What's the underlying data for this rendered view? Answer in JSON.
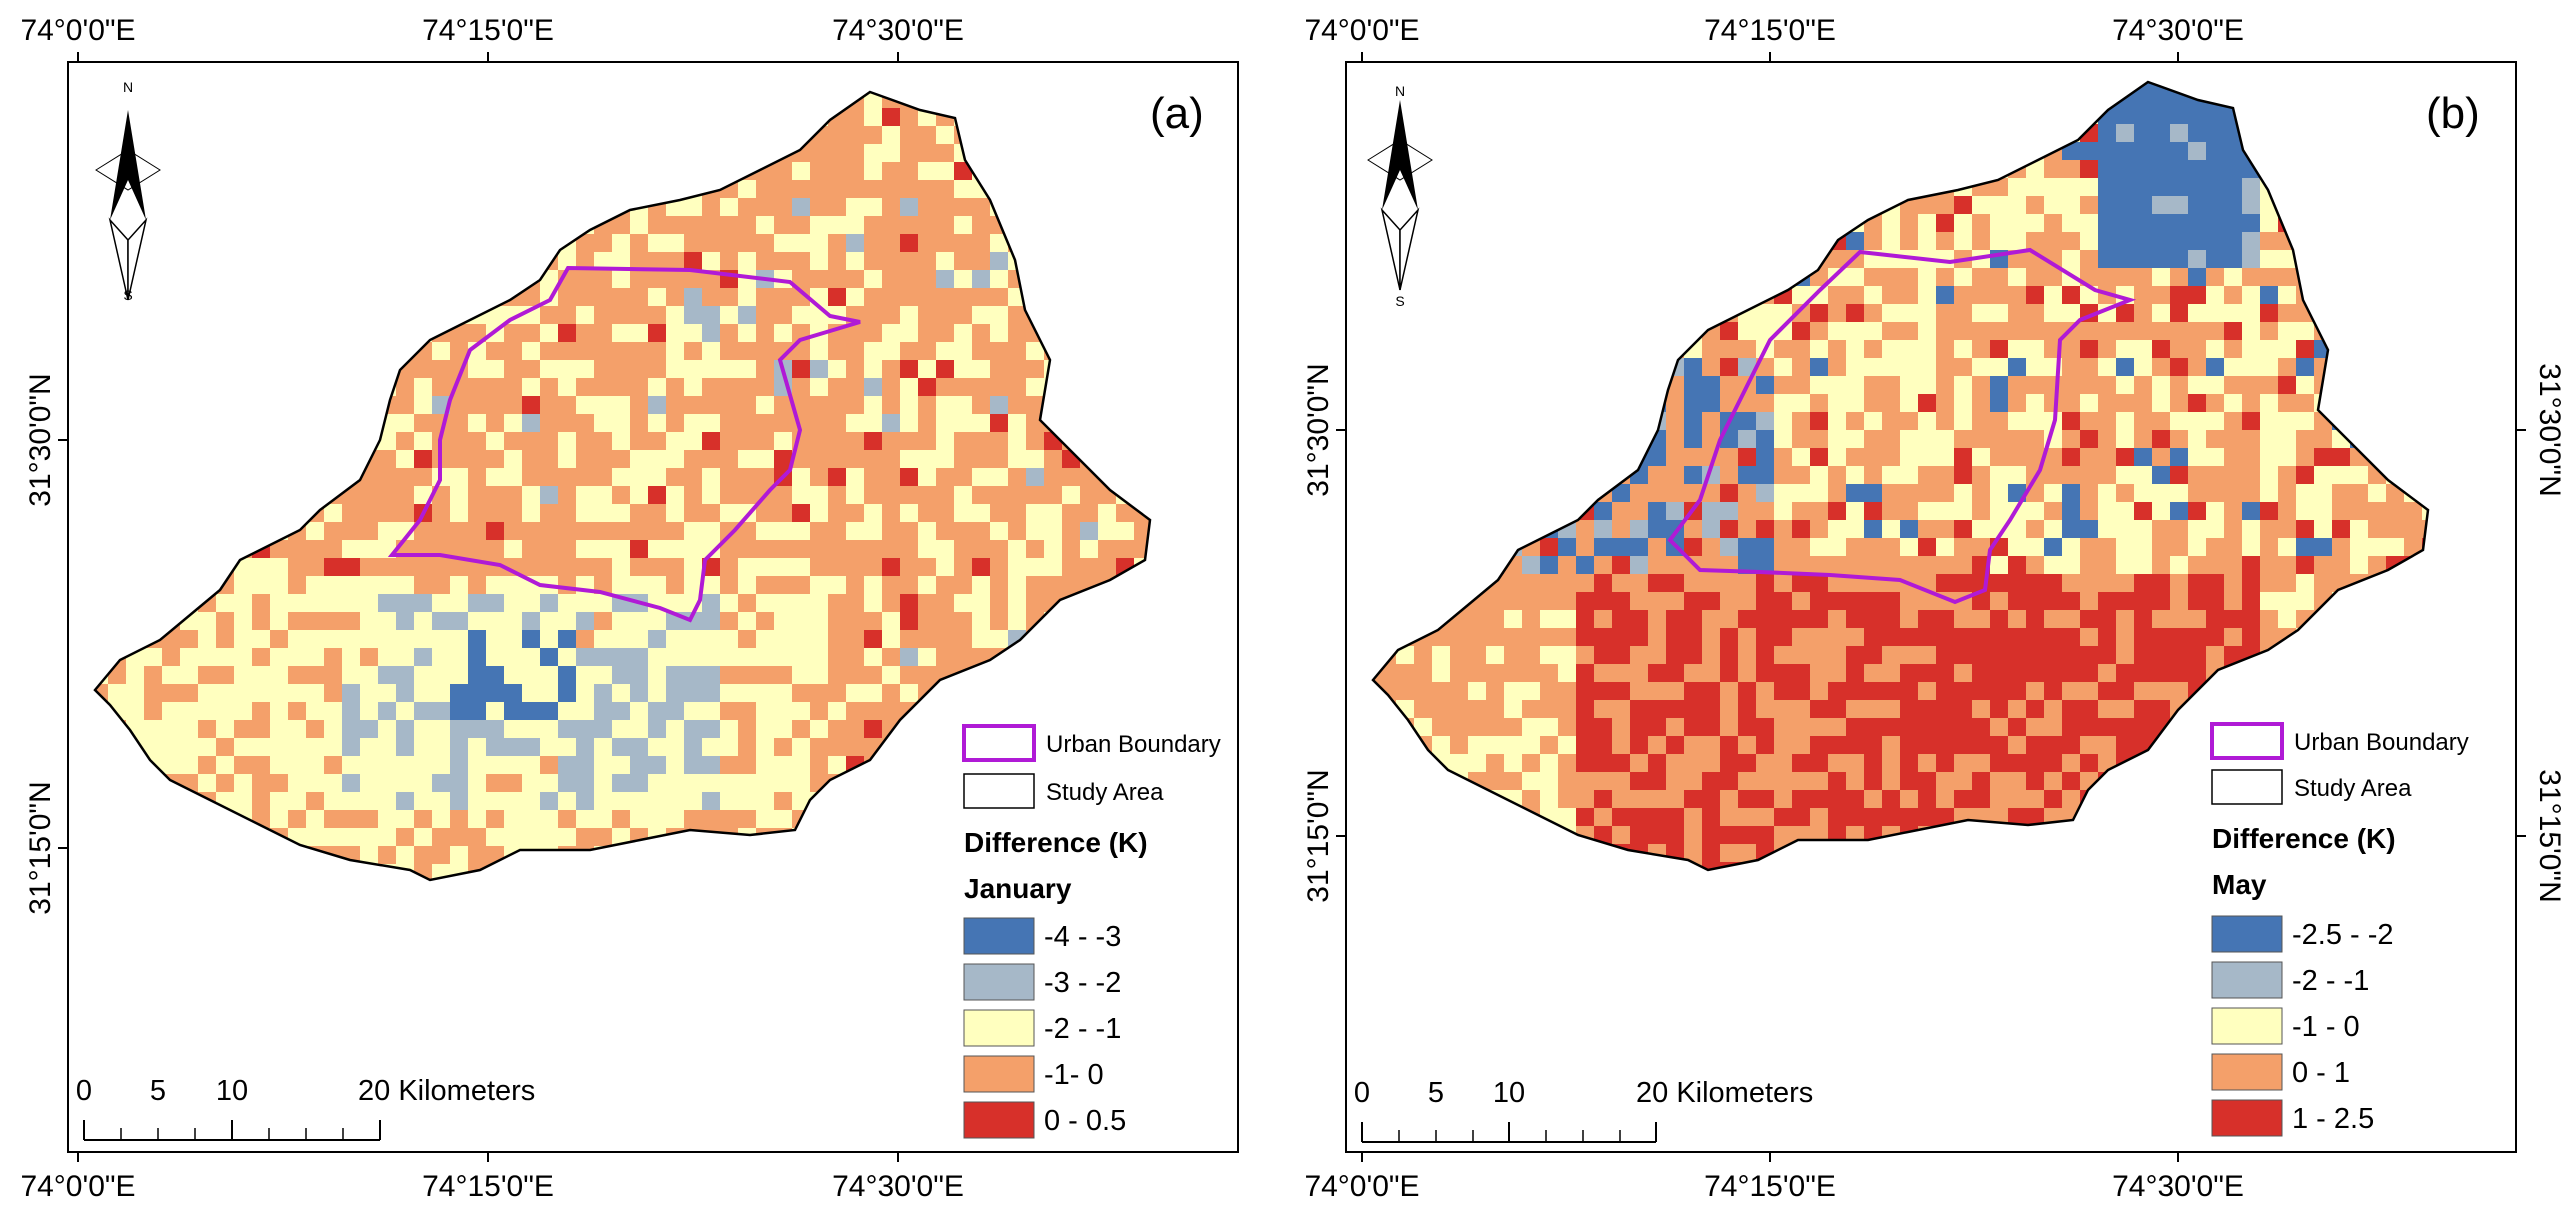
{
  "colors": {
    "c1": "#4575b4",
    "c2": "#a6b8c8",
    "c3": "#ffffbf",
    "c4": "#f4a06a",
    "c5": "#d7302a",
    "boundary": "#b01ad6"
  },
  "panels": [
    {
      "label": "(a)",
      "top_ticks": [
        "74°0'0\"E",
        "74°15'0\"E",
        "74°30'0\"E"
      ],
      "bottom_ticks": [
        "74°0'0\"E",
        "74°15'0\"E",
        "74°30'0\"E"
      ],
      "left_ticks": [
        "31°30'0\"N",
        "31°15'0\"N"
      ],
      "right_ticks": [],
      "north": {
        "n": "N",
        "s": "S"
      },
      "legend": {
        "urban": "Urban Boundary",
        "study": "Study Area",
        "title": "Difference (K)",
        "month": "January",
        "classes": [
          "-4 - -3",
          "-3 - -2",
          "-2 - -1",
          "-1- 0",
          "0 - 0.5"
        ]
      },
      "scalebar": {
        "labels": [
          "0",
          "5",
          "10",
          "20 Kilometers"
        ]
      }
    },
    {
      "label": "(b)",
      "top_ticks": [
        "74°0'0\"E",
        "74°15'0\"E",
        "74°30'0\"E"
      ],
      "bottom_ticks": [
        "74°0'0\"E",
        "74°15'0\"E",
        "74°30'0\"E"
      ],
      "left_ticks": [
        "31°30'0\"N",
        "31°15'0\"N"
      ],
      "right_ticks": [
        "31°30'0\"N",
        "31°15'0\"N"
      ],
      "north": {
        "n": "N",
        "s": "S"
      },
      "legend": {
        "urban": "Urban Boundary",
        "study": "Study Area",
        "title": "Difference (K)",
        "month": "May",
        "classes": [
          "-2.5 - -2",
          "-2 - -1",
          "-1 - 0",
          "0 - 1",
          "1 - 2.5"
        ]
      },
      "scalebar": {
        "labels": [
          "0",
          "5",
          "10",
          "20 Kilometers"
        ]
      }
    }
  ]
}
